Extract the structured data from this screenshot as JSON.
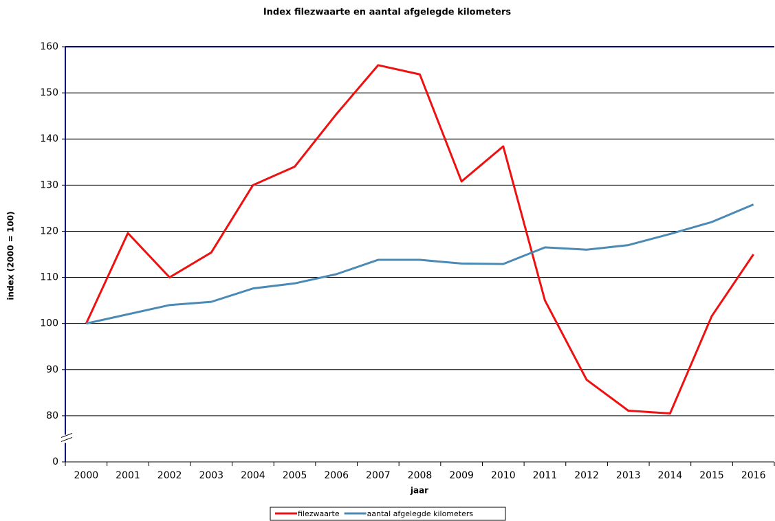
{
  "chart_data": {
    "type": "line",
    "title": "Index filezwaarte en aantal afgelegde kilometers",
    "xlabel": "jaar",
    "ylabel": "index (2000 = 100)",
    "categories": [
      "2000",
      "2001",
      "2002",
      "2003",
      "2004",
      "2005",
      "2006",
      "2007",
      "2008",
      "2009",
      "2010",
      "2011",
      "2012",
      "2013",
      "2014",
      "2015",
      "2016"
    ],
    "series": [
      {
        "name": "filezwaarte",
        "color": "#ee1111",
        "values": [
          100,
          119.6,
          110,
          115.4,
          130,
          134,
          145.4,
          156,
          154,
          130.8,
          138.4,
          105,
          87.8,
          81.1,
          80.5,
          101.6,
          115
        ]
      },
      {
        "name": "aantal afgelegde kilometers",
        "color": "#4a8ab5",
        "values": [
          100,
          102,
          104,
          104.7,
          107.6,
          108.7,
          110.7,
          113.8,
          113.8,
          113,
          112.9,
          116.5,
          116,
          117,
          119.4,
          122,
          125.8
        ]
      }
    ],
    "ylim": [
      0,
      160
    ],
    "yticks": [
      0,
      80,
      90,
      100,
      110,
      120,
      130,
      140,
      150,
      160
    ],
    "ybreak": [
      0,
      80
    ],
    "grid": true,
    "legend": "bottom"
  }
}
